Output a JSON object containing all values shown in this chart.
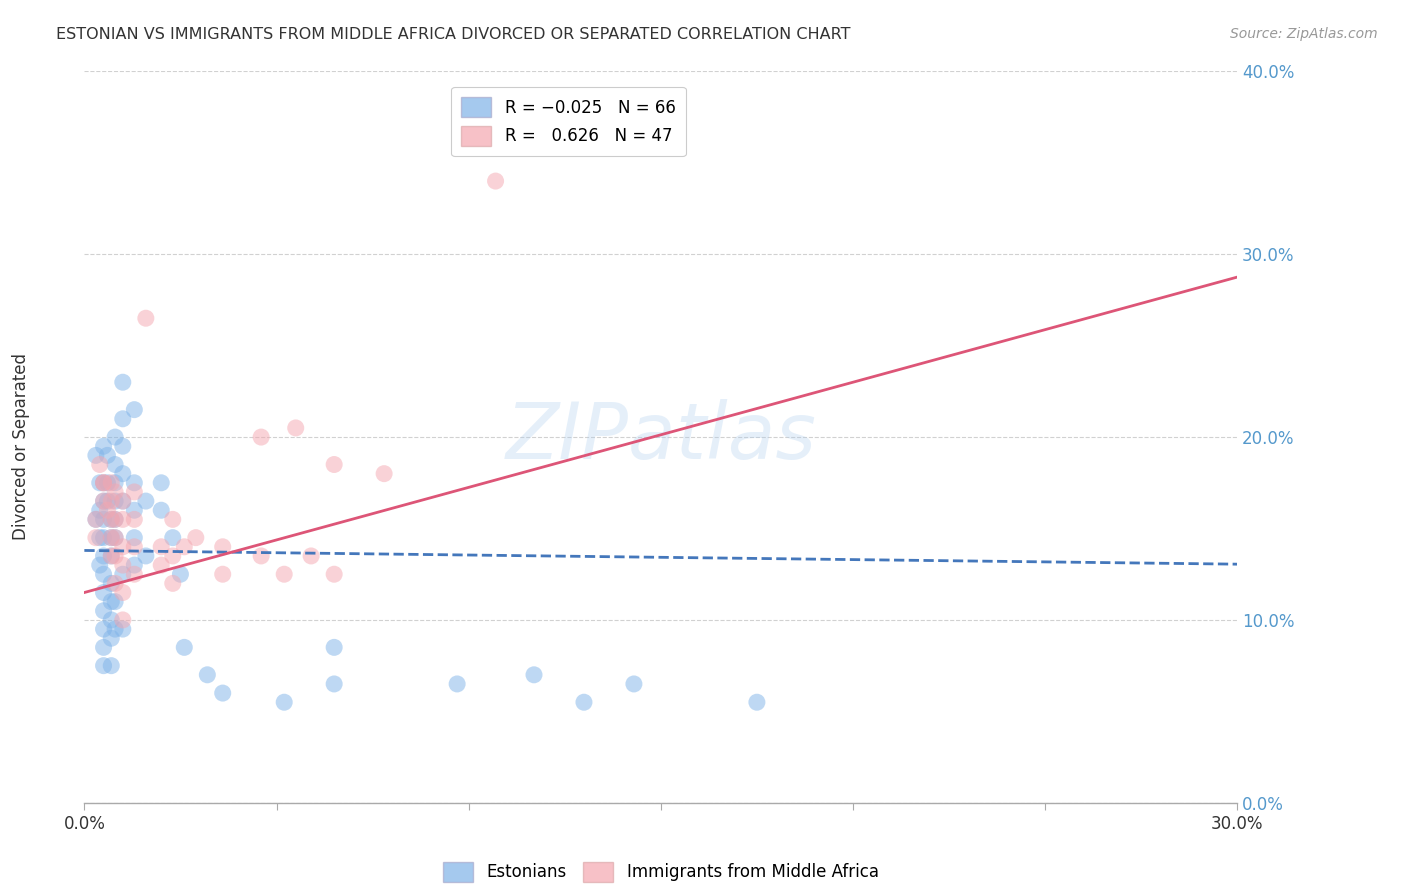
{
  "title": "ESTONIAN VS IMMIGRANTS FROM MIDDLE AFRICA DIVORCED OR SEPARATED CORRELATION CHART",
  "source": "Source: ZipAtlas.com",
  "ylabel_label": "Divorced or Separated",
  "xlim": [
    0.0,
    0.3
  ],
  "ylim": [
    0.0,
    0.4
  ],
  "legend_bottom": [
    "Estonians",
    "Immigrants from Middle Africa"
  ],
  "blue_color": "#7fb3e8",
  "pink_color": "#f4a7b0",
  "blue_line_color": "#4477bb",
  "pink_line_color": "#dd5577",
  "watermark": "ZIPatlas",
  "blue_line_y_intercept": 0.138,
  "blue_line_slope": -0.025,
  "pink_line_y_intercept": 0.115,
  "pink_line_slope": 0.575,
  "blue_scatter": [
    [
      0.003,
      0.19
    ],
    [
      0.003,
      0.155
    ],
    [
      0.004,
      0.175
    ],
    [
      0.004,
      0.16
    ],
    [
      0.004,
      0.145
    ],
    [
      0.004,
      0.13
    ],
    [
      0.005,
      0.195
    ],
    [
      0.005,
      0.175
    ],
    [
      0.005,
      0.165
    ],
    [
      0.005,
      0.155
    ],
    [
      0.005,
      0.145
    ],
    [
      0.005,
      0.135
    ],
    [
      0.005,
      0.125
    ],
    [
      0.005,
      0.115
    ],
    [
      0.005,
      0.105
    ],
    [
      0.005,
      0.095
    ],
    [
      0.005,
      0.085
    ],
    [
      0.005,
      0.075
    ],
    [
      0.006,
      0.19
    ],
    [
      0.006,
      0.175
    ],
    [
      0.006,
      0.165
    ],
    [
      0.007,
      0.155
    ],
    [
      0.007,
      0.145
    ],
    [
      0.007,
      0.135
    ],
    [
      0.007,
      0.12
    ],
    [
      0.007,
      0.11
    ],
    [
      0.007,
      0.1
    ],
    [
      0.007,
      0.09
    ],
    [
      0.007,
      0.075
    ],
    [
      0.008,
      0.2
    ],
    [
      0.008,
      0.185
    ],
    [
      0.008,
      0.175
    ],
    [
      0.008,
      0.165
    ],
    [
      0.008,
      0.155
    ],
    [
      0.008,
      0.145
    ],
    [
      0.008,
      0.11
    ],
    [
      0.008,
      0.095
    ],
    [
      0.01,
      0.23
    ],
    [
      0.01,
      0.21
    ],
    [
      0.01,
      0.195
    ],
    [
      0.01,
      0.18
    ],
    [
      0.01,
      0.165
    ],
    [
      0.01,
      0.125
    ],
    [
      0.01,
      0.095
    ],
    [
      0.013,
      0.215
    ],
    [
      0.013,
      0.175
    ],
    [
      0.013,
      0.16
    ],
    [
      0.013,
      0.145
    ],
    [
      0.013,
      0.13
    ],
    [
      0.016,
      0.165
    ],
    [
      0.016,
      0.135
    ],
    [
      0.02,
      0.175
    ],
    [
      0.02,
      0.16
    ],
    [
      0.023,
      0.145
    ],
    [
      0.025,
      0.125
    ],
    [
      0.026,
      0.085
    ],
    [
      0.032,
      0.07
    ],
    [
      0.036,
      0.06
    ],
    [
      0.052,
      0.055
    ],
    [
      0.065,
      0.085
    ],
    [
      0.065,
      0.065
    ],
    [
      0.097,
      0.065
    ],
    [
      0.117,
      0.07
    ],
    [
      0.13,
      0.055
    ],
    [
      0.143,
      0.065
    ],
    [
      0.175,
      0.055
    ]
  ],
  "pink_scatter": [
    [
      0.003,
      0.155
    ],
    [
      0.003,
      0.145
    ],
    [
      0.004,
      0.185
    ],
    [
      0.005,
      0.175
    ],
    [
      0.005,
      0.175
    ],
    [
      0.005,
      0.165
    ],
    [
      0.006,
      0.16
    ],
    [
      0.007,
      0.175
    ],
    [
      0.007,
      0.165
    ],
    [
      0.007,
      0.155
    ],
    [
      0.007,
      0.145
    ],
    [
      0.007,
      0.135
    ],
    [
      0.008,
      0.17
    ],
    [
      0.008,
      0.155
    ],
    [
      0.008,
      0.145
    ],
    [
      0.008,
      0.135
    ],
    [
      0.008,
      0.12
    ],
    [
      0.01,
      0.165
    ],
    [
      0.01,
      0.155
    ],
    [
      0.01,
      0.14
    ],
    [
      0.01,
      0.13
    ],
    [
      0.01,
      0.115
    ],
    [
      0.01,
      0.1
    ],
    [
      0.013,
      0.17
    ],
    [
      0.013,
      0.155
    ],
    [
      0.013,
      0.14
    ],
    [
      0.013,
      0.125
    ],
    [
      0.016,
      0.265
    ],
    [
      0.02,
      0.14
    ],
    [
      0.02,
      0.13
    ],
    [
      0.023,
      0.155
    ],
    [
      0.023,
      0.135
    ],
    [
      0.023,
      0.12
    ],
    [
      0.026,
      0.14
    ],
    [
      0.029,
      0.145
    ],
    [
      0.036,
      0.14
    ],
    [
      0.036,
      0.125
    ],
    [
      0.046,
      0.2
    ],
    [
      0.046,
      0.135
    ],
    [
      0.052,
      0.125
    ],
    [
      0.055,
      0.205
    ],
    [
      0.059,
      0.135
    ],
    [
      0.065,
      0.185
    ],
    [
      0.065,
      0.125
    ],
    [
      0.078,
      0.18
    ],
    [
      0.107,
      0.34
    ]
  ]
}
